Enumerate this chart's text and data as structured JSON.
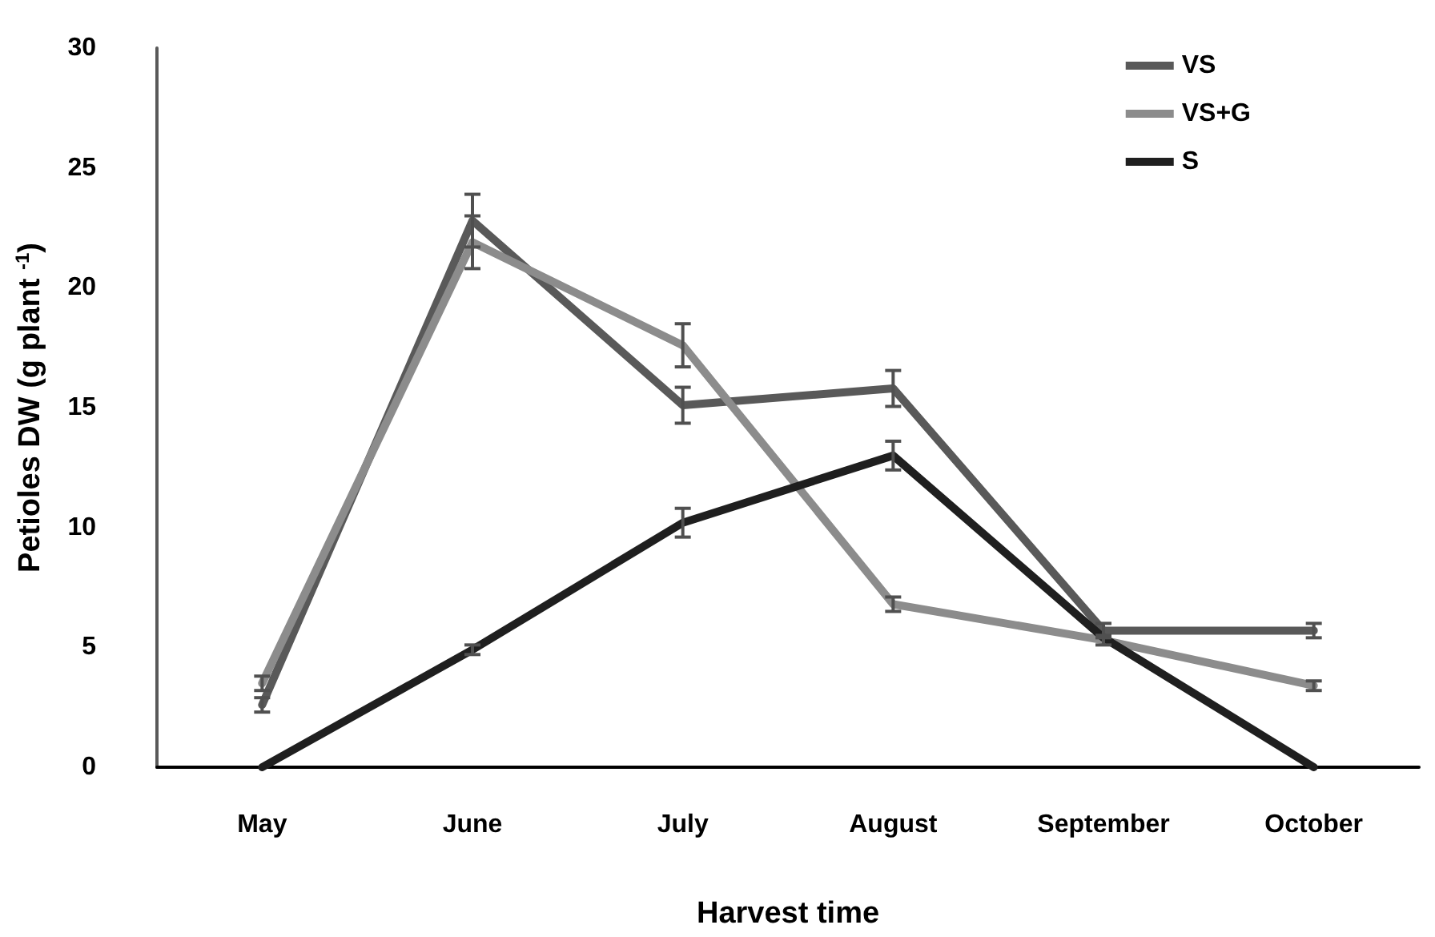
{
  "chart_data": {
    "type": "line",
    "xlabel": "Harvest time",
    "ylabel": "Petioles DW (g plant $^{-1}$)",
    "categories": [
      "May",
      "June",
      "July",
      "August",
      "September",
      "October"
    ],
    "series": [
      {
        "name": "VS",
        "color": "#595959",
        "values": [
          2.6,
          22.8,
          15.1,
          15.8,
          5.7,
          5.7
        ],
        "errors": [
          0.3,
          1.1,
          0.75,
          0.75,
          0.3,
          0.3
        ]
      },
      {
        "name": "VS+G",
        "color": "#8c8c8c",
        "values": [
          3.5,
          21.9,
          17.6,
          6.8,
          5.3,
          3.4
        ],
        "errors": [
          0.3,
          1.1,
          0.9,
          0.3,
          0.2,
          0.2
        ]
      },
      {
        "name": "S",
        "color": "#1f1f1f",
        "values": [
          0,
          4.9,
          10.2,
          13.0,
          5.4,
          0
        ],
        "errors": [
          null,
          0.2,
          0.6,
          0.6,
          null,
          null
        ]
      }
    ],
    "ylim": [
      0,
      30
    ],
    "yticks": [
      0,
      5,
      10,
      15,
      20,
      25,
      30
    ],
    "grid": false,
    "legend": "top right",
    "marker": "none",
    "line_style": "solid"
  }
}
